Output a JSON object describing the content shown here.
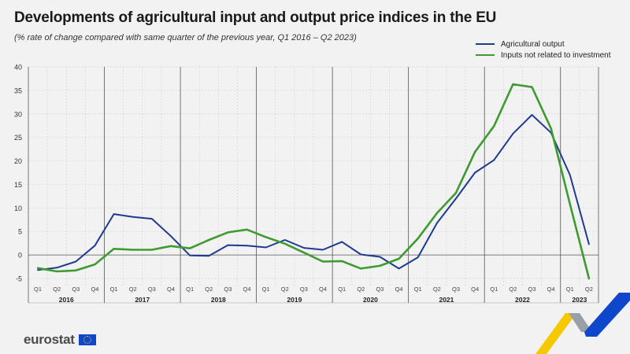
{
  "title": "Developments of agricultural input and output price indices in the EU",
  "subtitle": "(% rate of change compared with same quarter of the previous year, Q1 2016 – Q2 2023)",
  "footer": {
    "brand": "eurostat"
  },
  "chart_data": {
    "type": "line",
    "title": "Developments of agricultural input and output price indices in the EU",
    "subtitle": "(% rate of change compared with same quarter of the previous year, Q1 2016 – Q2 2023)",
    "xlabel": "",
    "ylabel": "",
    "ylim": [
      -5,
      40
    ],
    "yticks": [
      -5,
      0,
      5,
      10,
      15,
      20,
      25,
      30,
      35,
      40
    ],
    "grid": true,
    "legend_position": "top-right",
    "years": [
      "2016",
      "2017",
      "2018",
      "2019",
      "2020",
      "2021",
      "2022",
      "2023"
    ],
    "quarters": [
      "Q1",
      "Q2",
      "Q3",
      "Q4",
      "Q1",
      "Q2",
      "Q3",
      "Q4",
      "Q1",
      "Q2",
      "Q3",
      "Q4",
      "Q1",
      "Q2",
      "Q3",
      "Q4",
      "Q1",
      "Q2",
      "Q3",
      "Q4",
      "Q1",
      "Q2",
      "Q3",
      "Q4",
      "Q1",
      "Q2",
      "Q3",
      "Q4",
      "Q1",
      "Q2"
    ],
    "series": [
      {
        "name": "Agricultural output",
        "color": "#1f3a8f",
        "values": [
          -3.2,
          -2.7,
          -1.4,
          2.0,
          8.7,
          8.1,
          7.7,
          4.0,
          -0.1,
          -0.2,
          2.1,
          2.0,
          1.6,
          3.2,
          1.5,
          1.1,
          2.8,
          0.1,
          -0.4,
          -2.9,
          -0.5,
          6.8,
          12.0,
          17.5,
          20.2,
          25.8,
          29.8,
          26.0,
          17.0,
          2.3
        ]
      },
      {
        "name": "Inputs not related to investment",
        "color": "#3e9b2f",
        "values": [
          -2.8,
          -3.5,
          -3.3,
          -2.0,
          1.3,
          1.1,
          1.1,
          1.9,
          1.4,
          3.2,
          4.8,
          5.4,
          3.8,
          2.4,
          0.5,
          -1.4,
          -1.3,
          -2.9,
          -2.3,
          -0.8,
          3.5,
          8.9,
          13.2,
          21.9,
          27.4,
          36.3,
          35.7,
          26.9,
          10.8,
          -5.0
        ]
      }
    ]
  }
}
